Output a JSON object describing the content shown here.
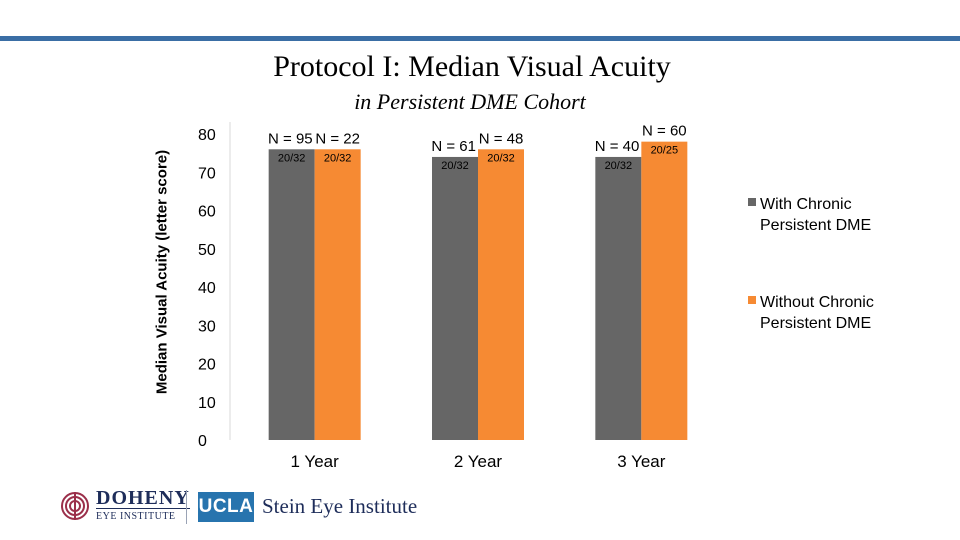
{
  "chart_data": {
    "type": "bar",
    "title": "Protocol I: Median Visual Acuity",
    "subtitle": "in Persistent DME Cohort",
    "ylabel": "Median Visual Acuity (letter score)",
    "xlabel": "",
    "ylim": [
      0,
      80
    ],
    "yticks": [
      0,
      10,
      20,
      30,
      40,
      50,
      60,
      70,
      80
    ],
    "categories": [
      "1 Year",
      "2 Year",
      "3 Year"
    ],
    "series": [
      {
        "name": "With Chronic Persistent DME",
        "color": "#666666",
        "values": [
          76,
          74,
          74
        ],
        "n_labels": [
          "N = 95",
          "N = 61",
          "N = 40"
        ],
        "acuity_labels": [
          "20/32",
          "20/32",
          "20/32"
        ]
      },
      {
        "name": "Without Chronic Persistent DME",
        "color": "#f68a33",
        "values": [
          76,
          76,
          78
        ],
        "n_labels": [
          "N = 22",
          "N = 48",
          "N = 60"
        ],
        "acuity_labels": [
          "20/32",
          "20/32",
          "20/25"
        ]
      }
    ],
    "grid": false,
    "legend_position": "right"
  },
  "logos": {
    "doheny_name": "DOHENY",
    "doheny_sub": "EYE INSTITUTE",
    "ucla": "UCLA",
    "stein": "Stein Eye Institute"
  },
  "colors": {
    "accent_rule": "#3a6ea5"
  }
}
